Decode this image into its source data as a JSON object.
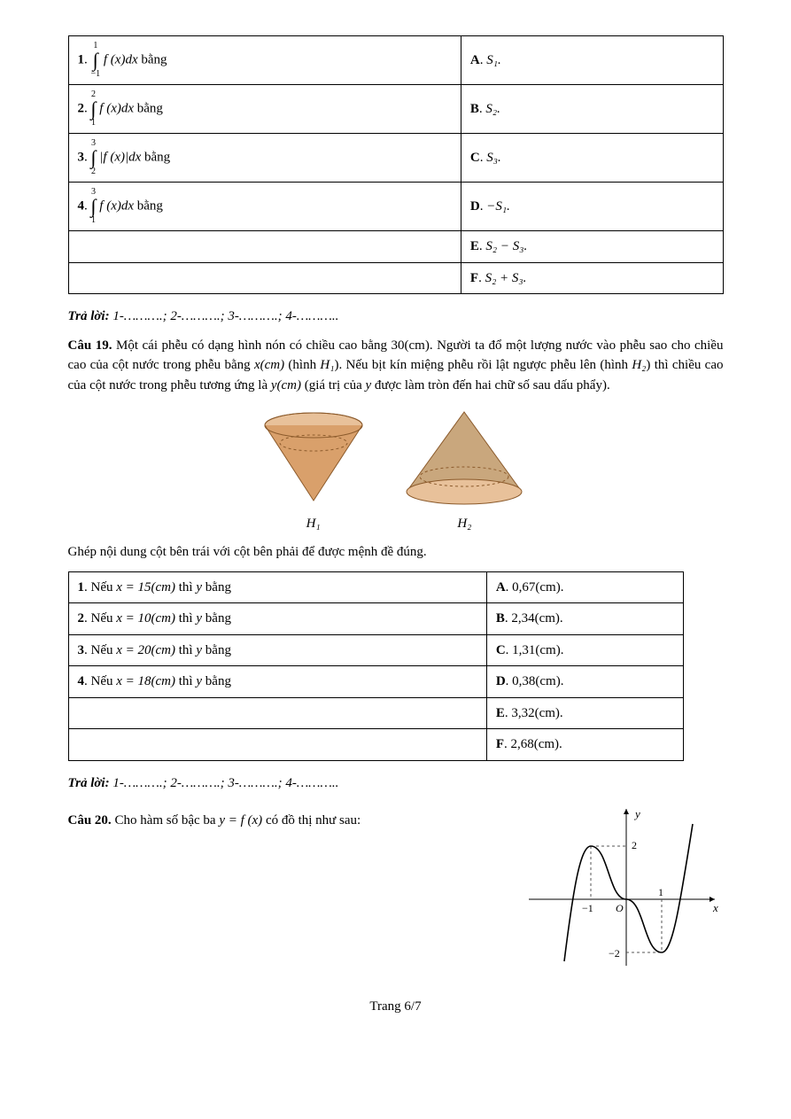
{
  "table1": {
    "rows": [
      {
        "num": "1",
        "upper": "1",
        "lower": "−1",
        "expr": "f (x)dx",
        "eq": " bằng",
        "optL": "A",
        "optV": "S₁."
      },
      {
        "num": "2",
        "upper": "2",
        "lower": "1",
        "expr": "f (x)dx",
        "eq": " bằng",
        "optL": "B",
        "optV": "S₂."
      },
      {
        "num": "3",
        "upper": "3",
        "lower": "2",
        "expr": "|f (x)|dx",
        "eq": " bằng",
        "optL": "C",
        "optV": "S₃."
      },
      {
        "num": "4",
        "upper": "3",
        "lower": "1",
        "expr": "f (x)dx",
        "eq": " bằng",
        "optL": "D",
        "optV": "−S₁."
      },
      {
        "num": "",
        "upper": "",
        "lower": "",
        "expr": "",
        "eq": "",
        "optL": "E",
        "optV": "S₂ − S₃."
      },
      {
        "num": "",
        "upper": "",
        "lower": "",
        "expr": "",
        "eq": "",
        "optL": "F",
        "optV": "S₂ + S₃."
      }
    ]
  },
  "traloi1": "Trả lời:",
  "traloi1_rest": " 1-……….; 2-……….; 3-……….; 4-………..",
  "cau19_label": "Câu 19.",
  "cau19_text1": " Một cái phễu có dạng hình nón có chiều cao bằng 30(cm). Người ta đổ một lượng nước vào phễu sao cho chiều cao của cột nước trong phễu bằng ",
  "cau19_xcm": "x(cm)",
  "cau19_text2": " (hình ",
  "cau19_H1": "H₁",
  "cau19_text3": "). Nếu bịt kín miệng phễu rồi lật ngược phễu lên (hình ",
  "cau19_H2": "H₂",
  "cau19_text4": ") thì chiều cao của cột nước trong phễu tương ứng là ",
  "cau19_ycm": "y(cm)",
  "cau19_text5": " (giá trị của ",
  "cau19_yvar": "y",
  "cau19_text6": " được làm tròn đến hai chữ số sau dấu phẩy).",
  "cones": {
    "H1": "H₁",
    "H2": "H₂"
  },
  "ghep_text": "Ghép nội dung cột bên trái với cột bên phải để được mệnh đề đúng.",
  "table2": {
    "rows": [
      {
        "l_pre": "1",
        "l_mid": ". Nếu ",
        "l_math": "x = 15(cm)",
        "l_end": " thì ",
        "l_y": "y",
        "l_bang": " bằng",
        "r_pre": "A",
        "r_val": ". 0,67(cm)."
      },
      {
        "l_pre": "2",
        "l_mid": ". Nếu ",
        "l_math": "x = 10(cm)",
        "l_end": " thì ",
        "l_y": "y",
        "l_bang": " bằng",
        "r_pre": "B",
        "r_val": ". 2,34(cm)."
      },
      {
        "l_pre": "3",
        "l_mid": ". Nếu ",
        "l_math": "x = 20(cm)",
        "l_end": " thì ",
        "l_y": "y",
        "l_bang": " bằng",
        "r_pre": "C",
        "r_val": ". 1,31(cm)."
      },
      {
        "l_pre": "4",
        "l_mid": ". Nếu ",
        "l_math": "x = 18(cm)",
        "l_end": " thì ",
        "l_y": "y",
        "l_bang": " bằng",
        "r_pre": "D",
        "r_val": ". 0,38(cm)."
      },
      {
        "l_pre": "",
        "l_mid": "",
        "l_math": "",
        "l_end": "",
        "l_y": "",
        "l_bang": "",
        "r_pre": "E",
        "r_val": ". 3,32(cm)."
      },
      {
        "l_pre": "",
        "l_mid": "",
        "l_math": "",
        "l_end": "",
        "l_y": "",
        "l_bang": "",
        "r_pre": "F",
        "r_val": ". 2,68(cm)."
      }
    ]
  },
  "traloi2": "Trả lời:",
  "traloi2_rest": " 1-……….; 2-……….; 3-……….; 4-………..",
  "cau20_label": "Câu 20.",
  "cau20_text1": " Cho hàm số bậc ba ",
  "cau20_eq": "y = f (x)",
  "cau20_text2": " có đồ thị như sau:",
  "graph": {
    "y_label": "y",
    "x_label": "x",
    "ticks_y_top": "2",
    "ticks_y_bot": "−2",
    "ticks_x_left": "−1",
    "O": "O",
    "ticks_x_right": "1"
  },
  "footer": "Trang 6/7",
  "colors": {
    "cone_fill": "#d9a06b",
    "cone_fill_light": "#e8c19a",
    "cone_edge": "#8b5a2b",
    "graph_curve": "#000",
    "graph_dash": "#555"
  }
}
